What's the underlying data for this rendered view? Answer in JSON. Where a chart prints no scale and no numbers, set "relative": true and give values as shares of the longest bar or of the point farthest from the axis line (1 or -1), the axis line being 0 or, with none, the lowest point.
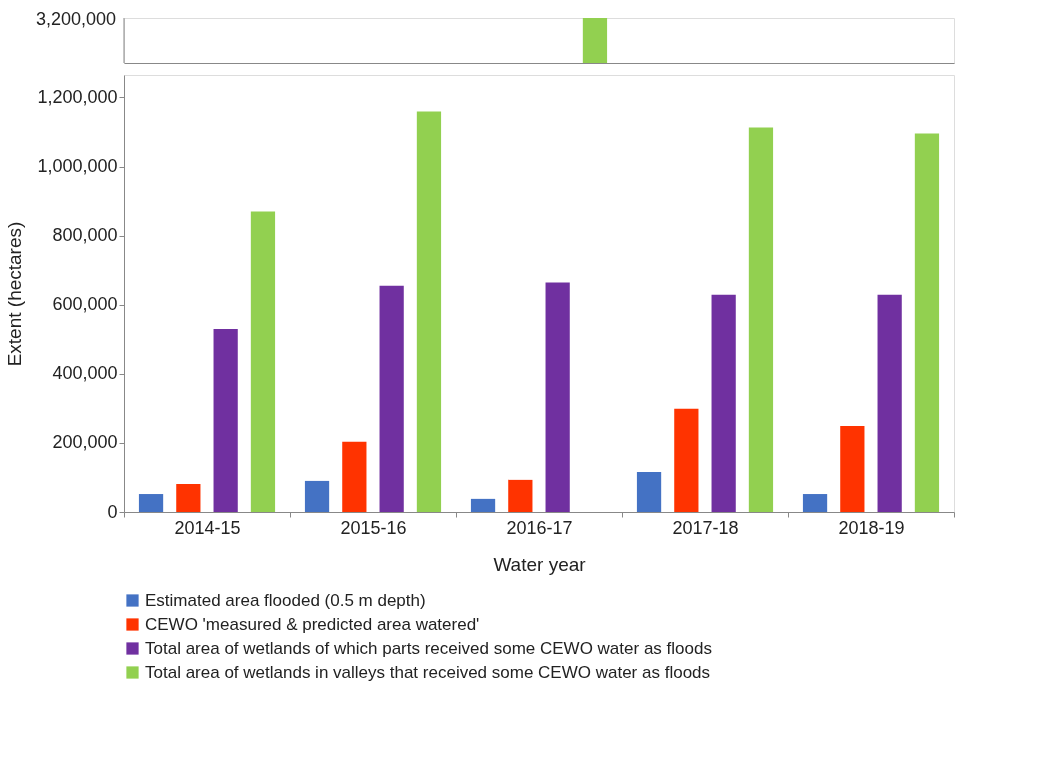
{
  "chart_data": [
    {
      "type": "bar",
      "categories": [
        "2014-15",
        "2015-16",
        "2016-17",
        "2017-18",
        "2018-19"
      ],
      "relative": true,
      "tick_labels": false,
      "annotations": [
        "3,200,000"
      ],
      "series": [
        {
          "color": "#4472c4",
          "values": [
            null,
            null,
            null,
            null,
            null
          ]
        },
        {
          "color": "#ff3300",
          "values": [
            null,
            null,
            null,
            null,
            null
          ]
        },
        {
          "color": "#7030a0",
          "values": [
            null,
            null,
            null,
            null,
            null
          ]
        },
        {
          "color": "#92d050",
          "values": [
            null,
            null,
            1,
            null,
            null
          ]
        }
      ]
    },
    {
      "type": "bar",
      "categories": [
        "2014-15",
        "2015-16",
        "2016-17",
        "2017-18",
        "2018-19"
      ],
      "xlabel": "Water year",
      "ylabel": "Extent (hectares)",
      "ylim": [
        0,
        1265000
      ],
      "yticks": [
        {
          "value": 0,
          "label": "0"
        },
        {
          "value": 200000,
          "label": "200,000"
        },
        {
          "value": 400000,
          "label": "400,000"
        },
        {
          "value": 600000,
          "label": "600,000"
        },
        {
          "value": 800000,
          "label": "800,000"
        },
        {
          "value": 1000000,
          "label": "1,000,000"
        },
        {
          "value": 1200000,
          "label": "1,200,000"
        }
      ],
      "legend": "bottom",
      "series": [
        {
          "name": "Estimated area flooded (0.5 m depth)",
          "color": "#4472c4",
          "values": [
            52000,
            90000,
            38000,
            116000,
            52000
          ]
        },
        {
          "name": "CEWO 'measured & predicted area watered'",
          "color": "#ff3300",
          "values": [
            81000,
            203000,
            93000,
            299000,
            249000
          ]
        },
        {
          "name": "Total area of wetlands of which parts received some CEWO water as floods",
          "color": "#7030a0",
          "values": [
            530000,
            655000,
            664000,
            629000,
            629000
          ]
        },
        {
          "name": "Total area of wetlands in valleys that received some CEWO water as floods",
          "color": "#92d050",
          "values": [
            870000,
            1159000,
            null,
            1113000,
            1096000
          ]
        }
      ]
    }
  ]
}
